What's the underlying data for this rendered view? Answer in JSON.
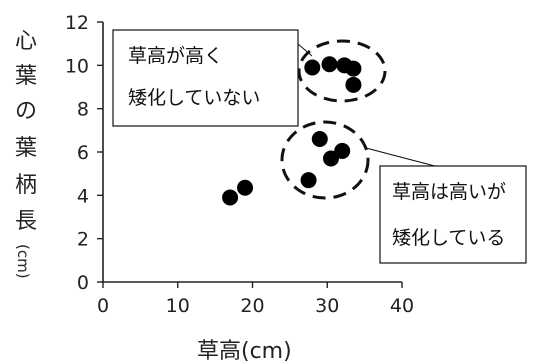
{
  "chart_data": {
    "type": "scatter",
    "xlabel": "草高(cm)",
    "ylabel": [
      "心",
      "葉",
      "の",
      "葉",
      "柄",
      "長",
      "(cm)"
    ],
    "xlim": [
      0,
      40
    ],
    "ylim": [
      0,
      12
    ],
    "x_ticks": [
      "0",
      "10",
      "20",
      "30",
      "40"
    ],
    "y_ticks": [
      "0",
      "2",
      "4",
      "6",
      "8",
      "10",
      "12"
    ],
    "grid": false,
    "points": [
      {
        "x": 17,
        "y": 3.9
      },
      {
        "x": 19,
        "y": 4.35
      },
      {
        "x": 27.5,
        "y": 4.7
      },
      {
        "x": 29,
        "y": 6.6
      },
      {
        "x": 30.5,
        "y": 5.7
      },
      {
        "x": 32,
        "y": 6.05
      },
      {
        "x": 28,
        "y": 9.9
      },
      {
        "x": 30.3,
        "y": 10.05
      },
      {
        "x": 32.3,
        "y": 10.0
      },
      {
        "x": 33.5,
        "y": 9.85
      },
      {
        "x": 33.5,
        "y": 9.1
      }
    ],
    "annotations": [
      {
        "lines": [
          "草高が高く",
          "矮化していない"
        ]
      },
      {
        "lines": [
          "草高は高いが",
          "矮化している"
        ]
      }
    ]
  }
}
